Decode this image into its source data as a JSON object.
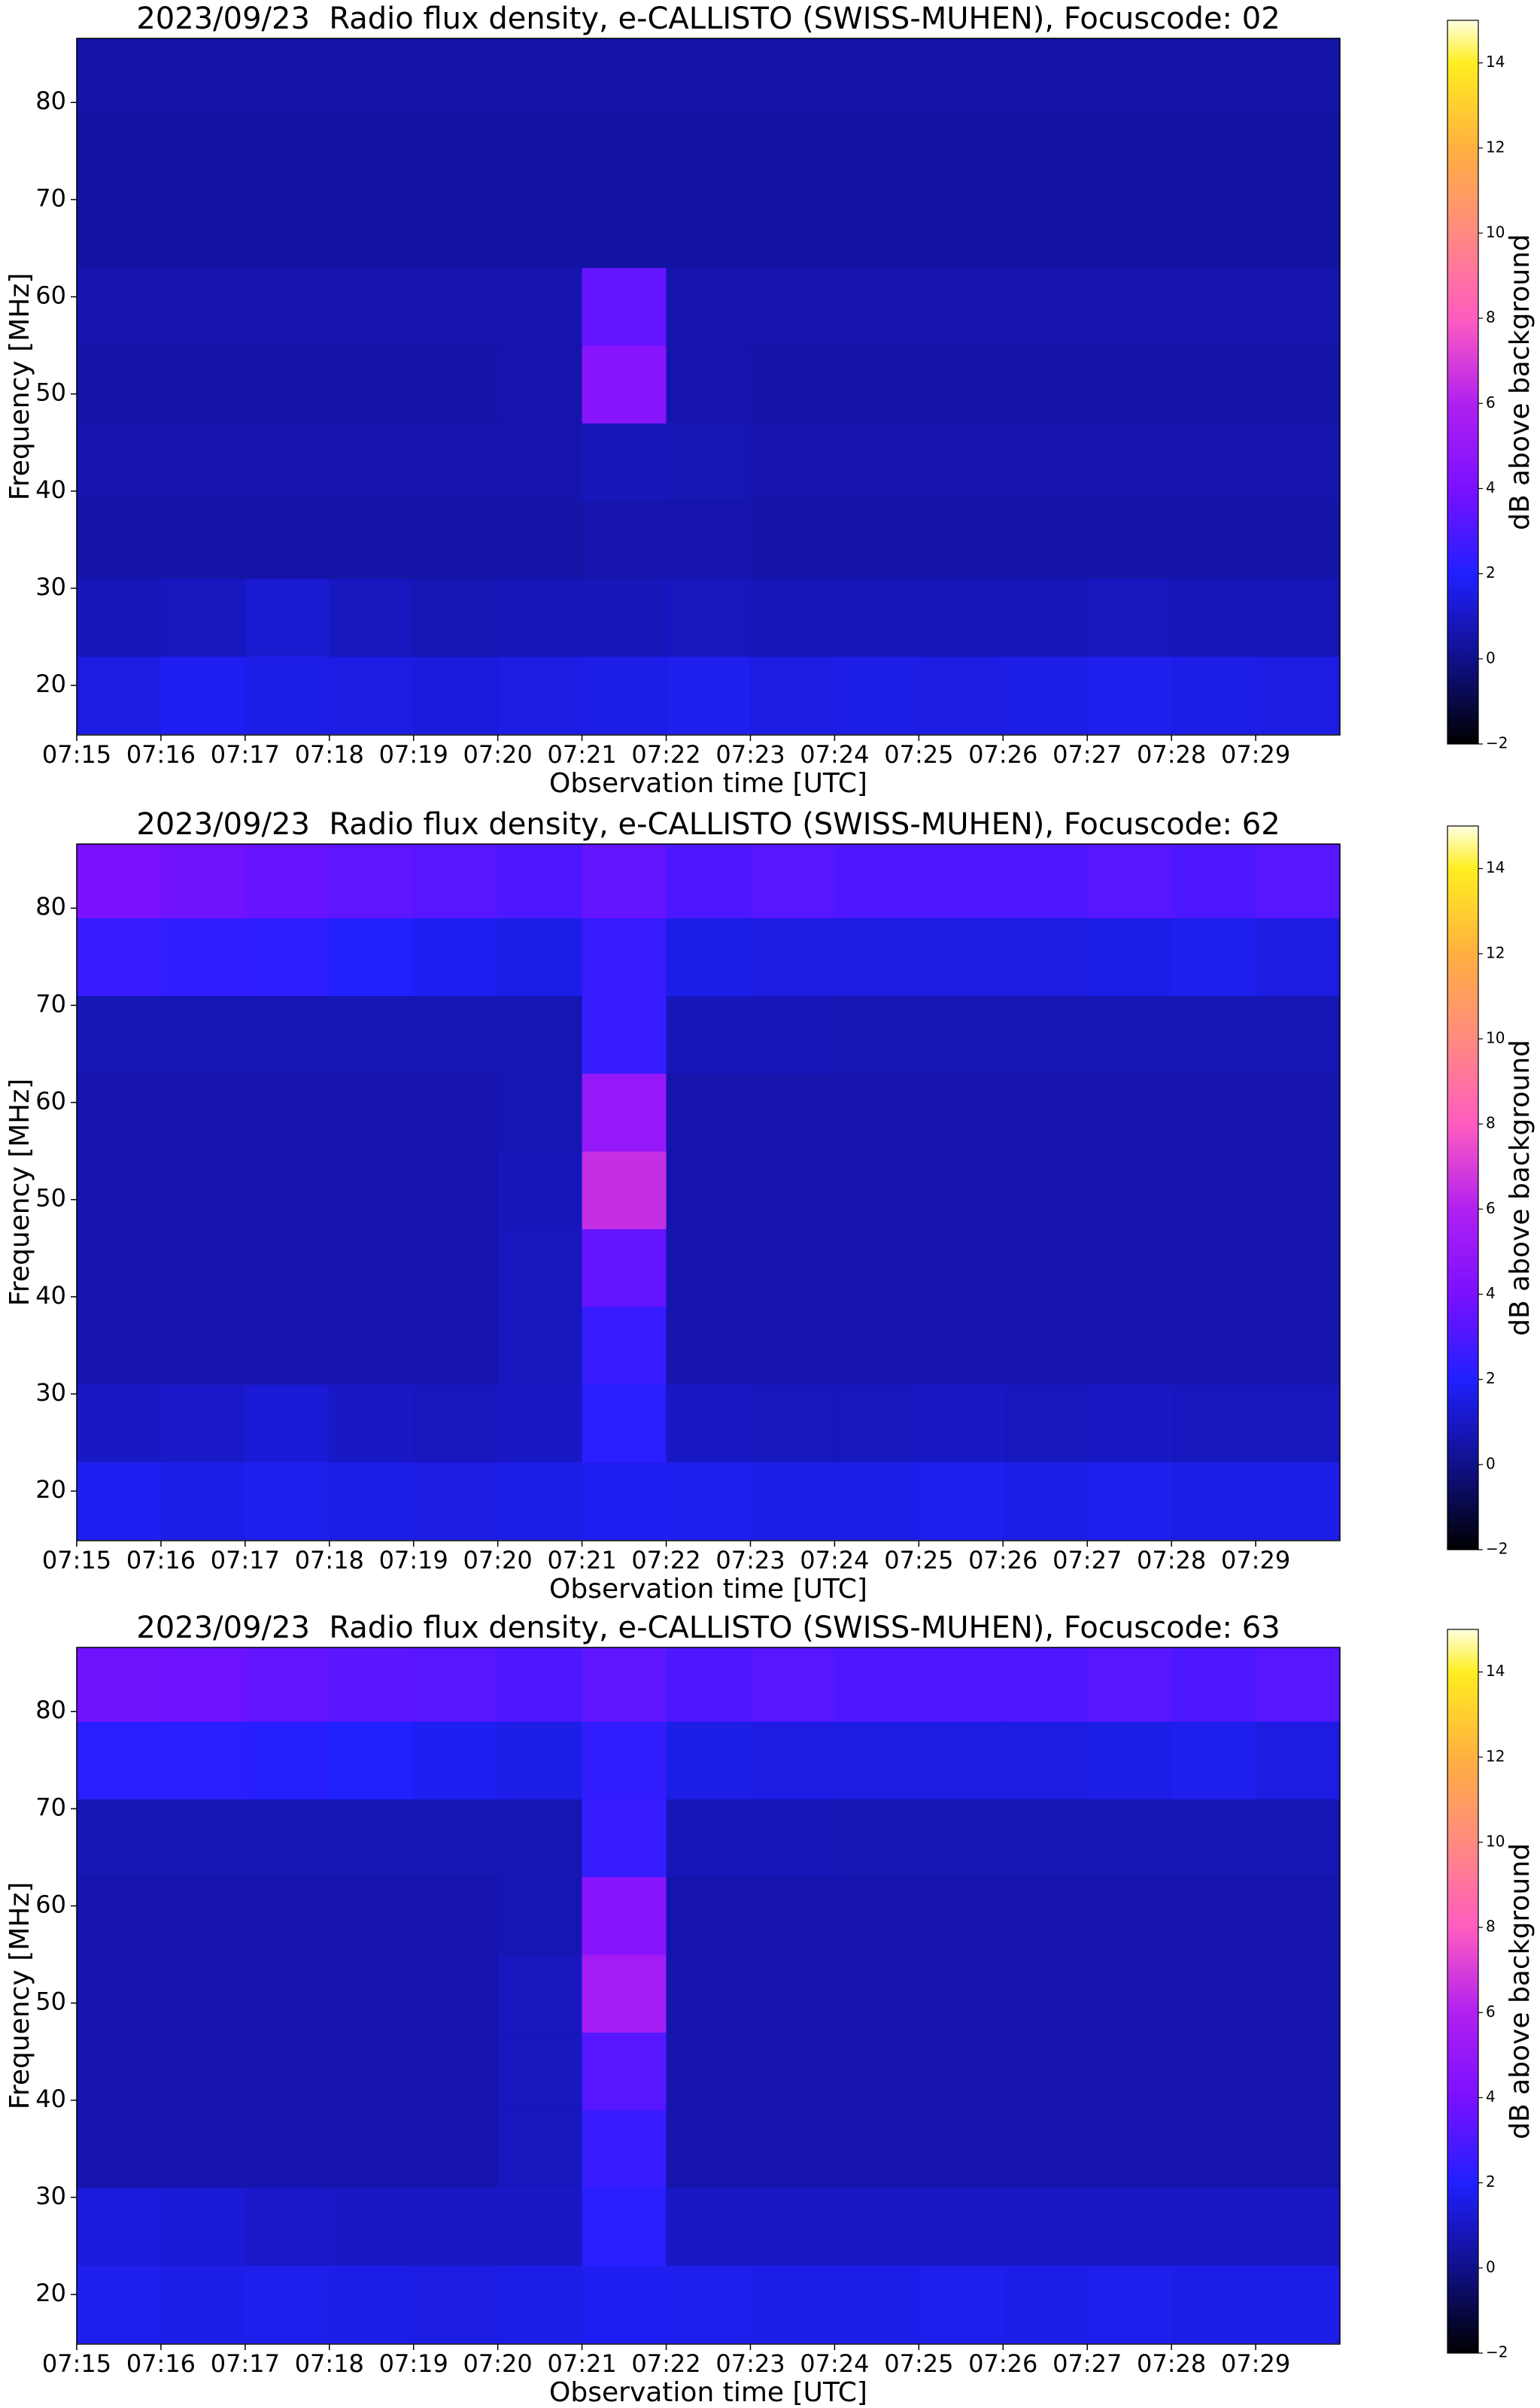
{
  "chart_data": [
    {
      "type": "heatmap",
      "title": "2023/09/23  Radio flux density, e-CALLISTO (SWISS-MUHEN), Focuscode: 02",
      "xlabel": "Observation time [UTC]",
      "ylabel": "Frequency [MHz]",
      "x_bins": [
        "07:15",
        "07:16",
        "07:17",
        "07:18",
        "07:19",
        "07:20",
        "07:21",
        "07:22",
        "07:23",
        "07:24",
        "07:25",
        "07:26",
        "07:27",
        "07:28",
        "07:29",
        "07:30"
      ],
      "y_bins": [
        15,
        23,
        31,
        39,
        47,
        55,
        63,
        71,
        79,
        87
      ],
      "z": [
        [
          1.5,
          1.8,
          1.6,
          1.5,
          1.4,
          1.5,
          1.6,
          1.7,
          1.5,
          1.6,
          1.5,
          1.6,
          1.7,
          1.6,
          1.5
        ],
        [
          0.8,
          0.9,
          1.2,
          0.9,
          0.7,
          0.8,
          0.8,
          0.9,
          0.8,
          0.8,
          0.8,
          0.8,
          0.9,
          0.8,
          0.8
        ],
        [
          0.5,
          0.5,
          0.5,
          0.5,
          0.5,
          0.5,
          0.6,
          0.6,
          0.5,
          0.5,
          0.5,
          0.5,
          0.5,
          0.5,
          0.5
        ],
        [
          0.6,
          0.6,
          0.6,
          0.6,
          0.6,
          0.6,
          0.8,
          0.7,
          0.6,
          0.6,
          0.6,
          0.6,
          0.6,
          0.6,
          0.6
        ],
        [
          0.5,
          0.5,
          0.5,
          0.5,
          0.5,
          0.6,
          4.5,
          0.6,
          0.5,
          0.5,
          0.5,
          0.5,
          0.5,
          0.5,
          0.5
        ],
        [
          0.6,
          0.6,
          0.6,
          0.6,
          0.6,
          0.6,
          3.5,
          0.6,
          0.6,
          0.6,
          0.6,
          0.6,
          0.6,
          0.6,
          0.6
        ],
        [
          0.4,
          0.4,
          0.4,
          0.4,
          0.4,
          0.4,
          0.4,
          0.4,
          0.4,
          0.4,
          0.4,
          0.4,
          0.4,
          0.4,
          0.4
        ],
        [
          0.4,
          0.4,
          0.4,
          0.4,
          0.4,
          0.4,
          0.4,
          0.4,
          0.4,
          0.4,
          0.4,
          0.4,
          0.4,
          0.4,
          0.4
        ],
        [
          0.5,
          0.5,
          0.5,
          0.5,
          0.5,
          0.5,
          0.5,
          0.5,
          0.5,
          0.5,
          0.5,
          0.5,
          0.5,
          0.5,
          0.5
        ]
      ],
      "xlim": [
        "07:15",
        "07:30"
      ],
      "ylim": [
        14.9,
        86.6
      ],
      "xticks": [
        "07:15",
        "07:16",
        "07:17",
        "07:18",
        "07:19",
        "07:20",
        "07:21",
        "07:22",
        "07:23",
        "07:24",
        "07:25",
        "07:26",
        "07:27",
        "07:28",
        "07:29"
      ],
      "yticks": [
        20,
        30,
        40,
        50,
        60,
        70,
        80
      ],
      "colorbar": {
        "label": "dB above background",
        "clim": [
          -2,
          15
        ],
        "ticks": [
          {
            "value": -2,
            "label": "−2"
          },
          0,
          2,
          4,
          6,
          8,
          10,
          12,
          14
        ],
        "colormap": [
          [
            -2,
            "#000000"
          ],
          [
            0,
            "#10108a"
          ],
          [
            2,
            "#2020ff"
          ],
          [
            4,
            "#7a10ff"
          ],
          [
            6,
            "#b020f0"
          ],
          [
            8,
            "#ff5cc0"
          ],
          [
            10,
            "#ff8a80"
          ],
          [
            12,
            "#ffb040"
          ],
          [
            14,
            "#ffee20"
          ],
          [
            15,
            "#ffffe0"
          ]
        ]
      }
    },
    {
      "type": "heatmap",
      "title": "2023/09/23  Radio flux density, e-CALLISTO (SWISS-MUHEN), Focuscode: 62",
      "xlabel": "Observation time [UTC]",
      "ylabel": "Frequency [MHz]",
      "x_bins": [
        "07:15",
        "07:16",
        "07:17",
        "07:18",
        "07:19",
        "07:20",
        "07:21",
        "07:22",
        "07:23",
        "07:24",
        "07:25",
        "07:26",
        "07:27",
        "07:28",
        "07:29",
        "07:30"
      ],
      "y_bins": [
        15,
        23,
        31,
        39,
        47,
        55,
        63,
        71,
        79,
        87
      ],
      "z": [
        [
          1.8,
          1.6,
          1.7,
          1.6,
          1.5,
          1.6,
          1.8,
          1.7,
          1.6,
          1.6,
          1.7,
          1.6,
          1.7,
          1.6,
          1.6
        ],
        [
          1.0,
          1.1,
          1.3,
          1.0,
          0.9,
          1.0,
          2.2,
          1.0,
          0.9,
          0.9,
          1.0,
          0.9,
          1.0,
          0.9,
          0.9
        ],
        [
          0.6,
          0.6,
          0.6,
          0.6,
          0.6,
          0.9,
          2.5,
          0.6,
          0.6,
          0.6,
          0.6,
          0.6,
          0.6,
          0.6,
          0.6
        ],
        [
          0.6,
          0.6,
          0.6,
          0.6,
          0.6,
          0.9,
          3.5,
          0.6,
          0.6,
          0.6,
          0.6,
          0.6,
          0.6,
          0.6,
          0.6
        ],
        [
          0.6,
          0.6,
          0.6,
          0.6,
          0.6,
          0.8,
          6.5,
          0.6,
          0.6,
          0.6,
          0.6,
          0.6,
          0.6,
          0.6,
          0.6
        ],
        [
          0.6,
          0.6,
          0.6,
          0.6,
          0.6,
          0.7,
          5.0,
          0.6,
          0.6,
          0.6,
          0.6,
          0.6,
          0.6,
          0.6,
          0.6
        ],
        [
          0.7,
          0.7,
          0.7,
          0.7,
          0.7,
          0.7,
          2.5,
          0.8,
          0.8,
          0.7,
          0.7,
          0.7,
          0.7,
          0.7,
          0.7
        ],
        [
          2.5,
          2.4,
          2.3,
          2.0,
          1.8,
          1.6,
          2.5,
          1.6,
          1.5,
          1.5,
          1.5,
          1.5,
          1.6,
          1.7,
          1.5
        ],
        [
          4.0,
          3.8,
          3.6,
          3.4,
          3.2,
          3.0,
          3.5,
          3.0,
          3.2,
          3.0,
          3.0,
          3.0,
          3.2,
          3.0,
          3.2
        ]
      ],
      "xlim": [
        "07:15",
        "07:30"
      ],
      "ylim": [
        14.9,
        86.6
      ],
      "xticks": [
        "07:15",
        "07:16",
        "07:17",
        "07:18",
        "07:19",
        "07:20",
        "07:21",
        "07:22",
        "07:23",
        "07:24",
        "07:25",
        "07:26",
        "07:27",
        "07:28",
        "07:29"
      ],
      "yticks": [
        20,
        30,
        40,
        50,
        60,
        70,
        80
      ],
      "colorbar": {
        "label": "dB above background",
        "clim": [
          -2,
          15
        ],
        "ticks": [
          {
            "value": -2,
            "label": "−2"
          },
          0,
          2,
          4,
          6,
          8,
          10,
          12,
          14
        ],
        "colormap": [
          [
            -2,
            "#000000"
          ],
          [
            0,
            "#10108a"
          ],
          [
            2,
            "#2020ff"
          ],
          [
            4,
            "#7a10ff"
          ],
          [
            6,
            "#b020f0"
          ],
          [
            8,
            "#ff5cc0"
          ],
          [
            10,
            "#ff8a80"
          ],
          [
            12,
            "#ffb040"
          ],
          [
            14,
            "#ffee20"
          ],
          [
            15,
            "#ffffe0"
          ]
        ]
      }
    },
    {
      "type": "heatmap",
      "title": "2023/09/23  Radio flux density, e-CALLISTO (SWISS-MUHEN), Focuscode: 63",
      "xlabel": "Observation time [UTC]",
      "ylabel": "Frequency [MHz]",
      "x_bins": [
        "07:15",
        "07:16",
        "07:17",
        "07:18",
        "07:19",
        "07:20",
        "07:21",
        "07:22",
        "07:23",
        "07:24",
        "07:25",
        "07:26",
        "07:27",
        "07:28",
        "07:29",
        "07:30"
      ],
      "y_bins": [
        15,
        23,
        31,
        39,
        47,
        55,
        63,
        71,
        79,
        87
      ],
      "z": [
        [
          1.7,
          1.6,
          1.7,
          1.6,
          1.5,
          1.6,
          1.8,
          1.7,
          1.6,
          1.6,
          1.7,
          1.6,
          1.7,
          1.6,
          1.6
        ],
        [
          1.4,
          1.3,
          1.1,
          1.0,
          1.0,
          1.0,
          2.2,
          1.0,
          1.0,
          1.0,
          1.0,
          1.0,
          1.0,
          1.0,
          1.0
        ],
        [
          0.6,
          0.6,
          0.6,
          0.6,
          0.6,
          0.9,
          2.5,
          0.6,
          0.6,
          0.6,
          0.6,
          0.6,
          0.6,
          0.6,
          0.6
        ],
        [
          0.6,
          0.6,
          0.6,
          0.6,
          0.6,
          0.9,
          3.2,
          0.6,
          0.6,
          0.6,
          0.6,
          0.6,
          0.6,
          0.6,
          0.6
        ],
        [
          0.6,
          0.6,
          0.6,
          0.6,
          0.6,
          0.9,
          5.5,
          0.6,
          0.6,
          0.6,
          0.6,
          0.6,
          0.6,
          0.6,
          0.6
        ],
        [
          0.6,
          0.6,
          0.6,
          0.6,
          0.6,
          0.7,
          4.5,
          0.6,
          0.6,
          0.6,
          0.6,
          0.6,
          0.6,
          0.6,
          0.6
        ],
        [
          0.7,
          0.7,
          0.7,
          0.7,
          0.7,
          0.7,
          2.5,
          0.8,
          0.8,
          0.7,
          0.7,
          0.7,
          0.7,
          0.7,
          0.7
        ],
        [
          2.2,
          2.2,
          2.1,
          2.0,
          1.8,
          1.6,
          2.4,
          1.6,
          1.5,
          1.5,
          1.5,
          1.5,
          1.6,
          1.7,
          1.5
        ],
        [
          3.8,
          3.7,
          3.5,
          3.3,
          3.2,
          3.0,
          3.4,
          3.0,
          3.2,
          3.0,
          3.0,
          3.0,
          3.2,
          3.0,
          3.2
        ]
      ],
      "xlim": [
        "07:15",
        "07:30"
      ],
      "ylim": [
        14.9,
        86.6
      ],
      "xticks": [
        "07:15",
        "07:16",
        "07:17",
        "07:18",
        "07:19",
        "07:20",
        "07:21",
        "07:22",
        "07:23",
        "07:24",
        "07:25",
        "07:26",
        "07:27",
        "07:28",
        "07:29"
      ],
      "yticks": [
        20,
        30,
        40,
        50,
        60,
        70,
        80
      ],
      "colorbar": {
        "label": "dB above background",
        "clim": [
          -2,
          15
        ],
        "ticks": [
          {
            "value": -2,
            "label": "−2"
          },
          0,
          2,
          4,
          6,
          8,
          10,
          12,
          14
        ],
        "colormap": [
          [
            -2,
            "#000000"
          ],
          [
            0,
            "#10108a"
          ],
          [
            2,
            "#2020ff"
          ],
          [
            4,
            "#7a10ff"
          ],
          [
            6,
            "#b020f0"
          ],
          [
            8,
            "#ff5cc0"
          ],
          [
            10,
            "#ff8a80"
          ],
          [
            12,
            "#ffb040"
          ],
          [
            14,
            "#ffee20"
          ],
          [
            15,
            "#ffffe0"
          ]
        ]
      }
    }
  ]
}
